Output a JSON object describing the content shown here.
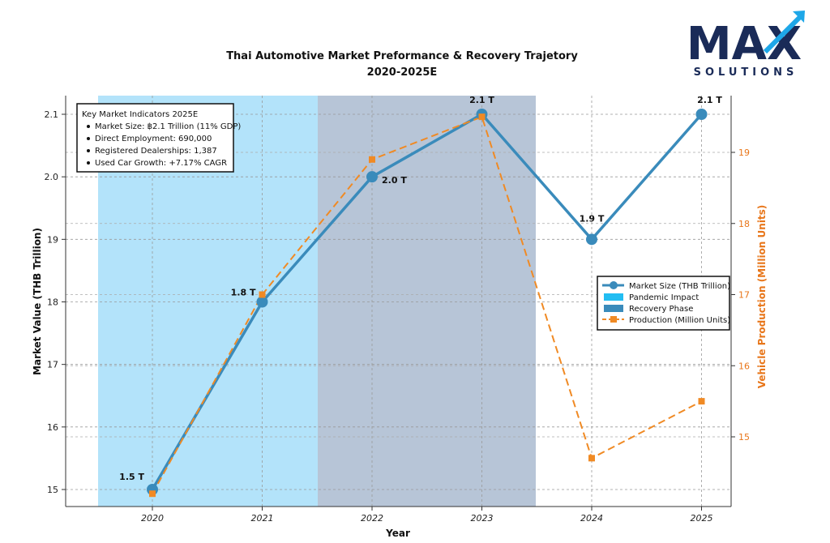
{
  "logo": {
    "top": "MAX",
    "bottom": "SOLUTIONS",
    "colors": {
      "navy": "#1a2b58",
      "accent": "#1ea7e8"
    }
  },
  "chart_data": {
    "type": "line",
    "title": "Thai Automotive Market Preformance & Recovery Trajetory",
    "subtitle": "2020-2025E",
    "xlabel": "Year",
    "ylabel": "Market Value (THB Trillion)",
    "y2label": "Vehicle Production (Million Units)",
    "categories": [
      "2020",
      "2021",
      "2022",
      "2023",
      "2024",
      "2025"
    ],
    "y_ticks": [
      "15",
      "16",
      "17",
      "18",
      "19",
      "2.0",
      "2.1"
    ],
    "y2_ticks": [
      "15",
      "16",
      "17",
      "18",
      "19"
    ],
    "y2lim": [
      1.4,
      1.99
    ],
    "series": [
      {
        "name": "Market Size (THB Trillion)",
        "axis": "left",
        "color": "#3a8bbb",
        "style": "solid",
        "values": [
          1.5,
          1.8,
          2.0,
          2.1,
          1.9,
          2.1
        ],
        "labels": [
          "1.5 T",
          "1.8 T",
          "2.0 T",
          "2.1 T",
          "1.9 T",
          "2.1 T"
        ]
      },
      {
        "name": "Production (Million Units)",
        "axis": "right",
        "color": "#f08a24",
        "style": "dashed",
        "values": [
          1.42,
          1.7,
          1.89,
          1.95,
          1.47,
          1.55
        ]
      }
    ],
    "shaded_regions": [
      {
        "name": "Pandemic Impact",
        "color": "#b3e3fa",
        "from": "2020",
        "to": "2021"
      },
      {
        "name": "Recovery Phase",
        "color": "#b7c5d7",
        "from": "2022",
        "to": "2023"
      }
    ],
    "legend": {
      "placement": "right",
      "entries": [
        "Market Size (THB Trillion)",
        "Pandemic Impact",
        "Recovery Phase",
        "Production (Million Units)"
      ],
      "swatch_colors": {
        "pandemic": "#22bdf2",
        "recovery": "#3a8bbb"
      }
    },
    "grid": true,
    "annotation_box": {
      "title": "Key Market Indicators 2025E",
      "items": [
        "Market Size: ฿2.1 Trillion (11% GDP)",
        "Direct Employment: 690,000",
        "Registered Dealerships: 1,387",
        "Used Car Growth: +7.17% CAGR"
      ]
    }
  }
}
